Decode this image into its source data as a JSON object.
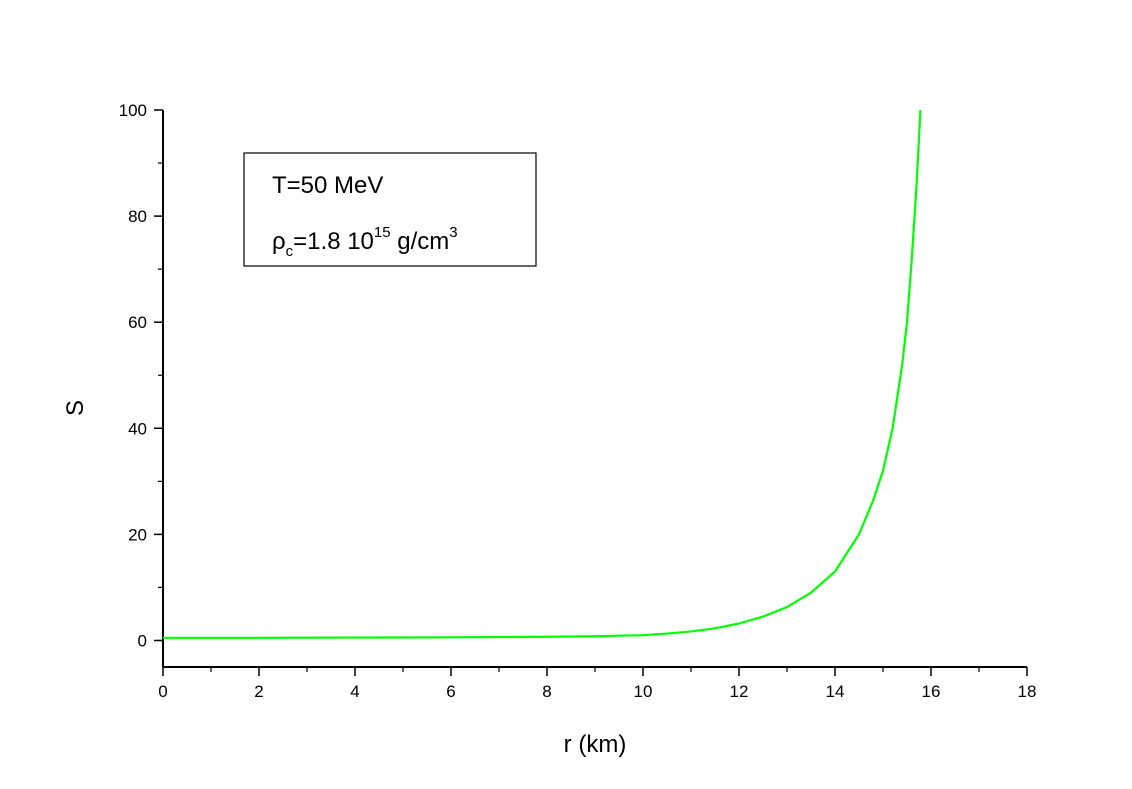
{
  "chart_data": {
    "type": "line",
    "xlabel": "r (km)",
    "ylabel": "S",
    "xlim": [
      0,
      18
    ],
    "ylim": [
      -5,
      100
    ],
    "xticks": [
      "0",
      "2",
      "4",
      "6",
      "8",
      "10",
      "12",
      "14",
      "16",
      "18"
    ],
    "yticks": [
      "0",
      "20",
      "40",
      "60",
      "80",
      "100"
    ],
    "grid": false,
    "legend_position": "top-left",
    "annotation": {
      "line1": "T=50 MeV",
      "line2_base": "ρ",
      "line2_sub": "c",
      "line2_mid": "=1.8 10",
      "line2_sup": "15",
      "line2_unit": " g/cm",
      "line2_unit_sup": "3"
    },
    "series": [
      {
        "color": "#00ff00",
        "x": [
          0,
          2,
          4,
          6,
          8,
          9,
          10,
          10.5,
          11,
          11.5,
          12,
          12.5,
          13,
          13.5,
          14,
          14.5,
          14.8,
          15,
          15.2,
          15.4,
          15.5,
          15.6,
          15.7,
          15.78
        ],
        "y": [
          0.5,
          0.5,
          0.55,
          0.6,
          0.7,
          0.8,
          1.0,
          1.3,
          1.7,
          2.3,
          3.2,
          4.5,
          6.3,
          9.0,
          13.0,
          20.0,
          26.5,
          32.0,
          40.0,
          52.0,
          60.0,
          72.0,
          86.0,
          100.0
        ]
      }
    ]
  }
}
